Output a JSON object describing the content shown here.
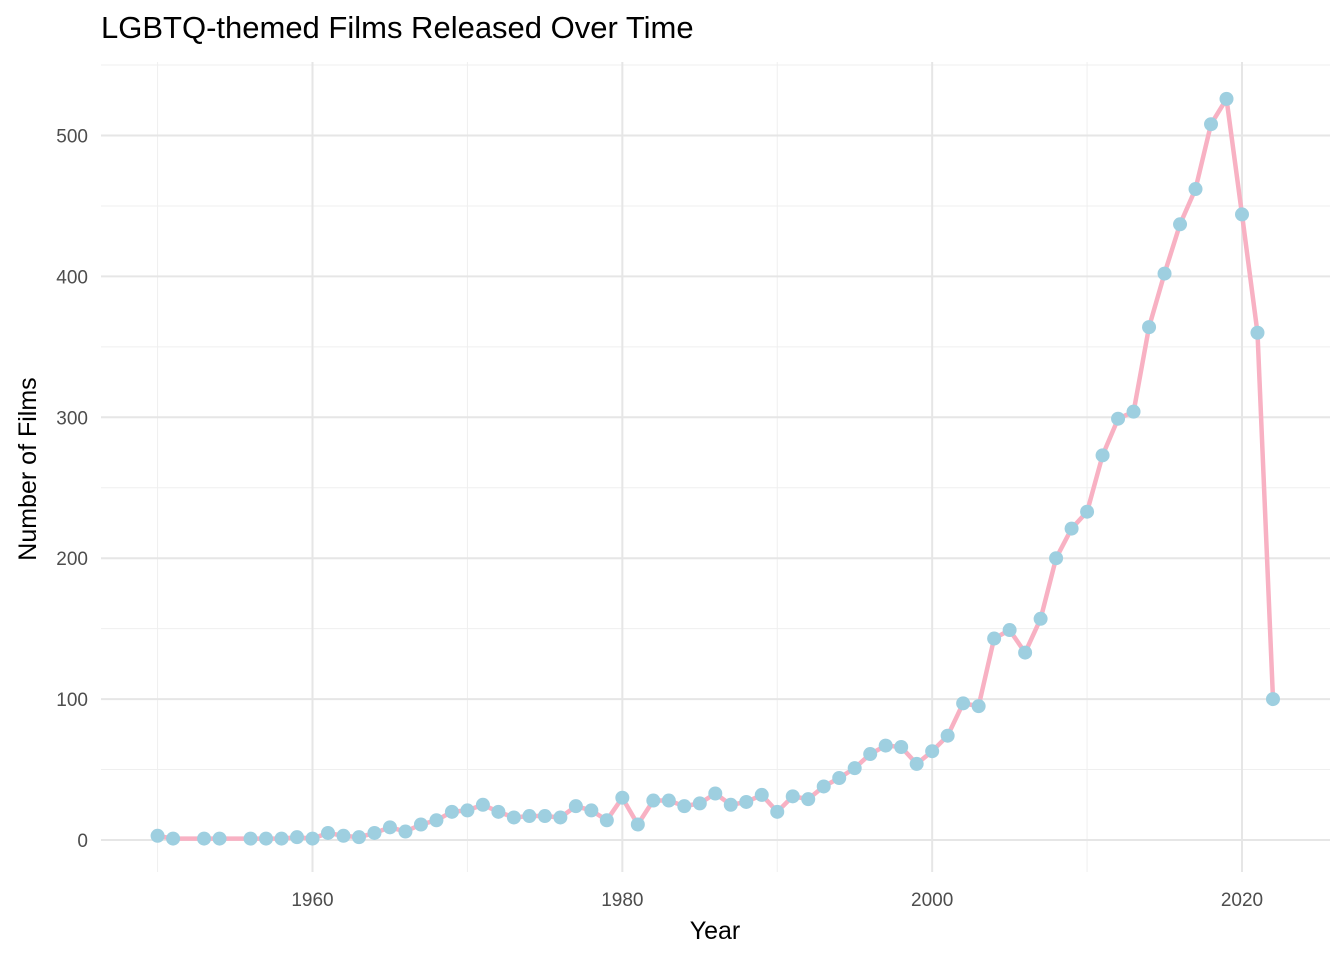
{
  "chart_data": {
    "type": "line",
    "title": "LGBTQ-themed Films Released Over Time",
    "xlabel": "Year",
    "ylabel": "Number of Films",
    "xlim": [
      1946,
      2025
    ],
    "ylim": [
      -20,
      550
    ],
    "x_ticks": [
      1960,
      1980,
      2000,
      2020
    ],
    "x_tick_labels": [
      "1960",
      "1980",
      "2000",
      "2020"
    ],
    "y_ticks": [
      0,
      100,
      200,
      300,
      400,
      500
    ],
    "y_tick_labels": [
      "0",
      "100",
      "200",
      "300",
      "400",
      "500"
    ],
    "grid": true,
    "colors": {
      "line": "#F8B1C3",
      "points": "#9ECFE0",
      "grid": "#E6E6E6"
    },
    "x": [
      1950,
      1951,
      1953,
      1954,
      1956,
      1957,
      1958,
      1959,
      1960,
      1961,
      1962,
      1963,
      1964,
      1965,
      1966,
      1967,
      1968,
      1969,
      1970,
      1971,
      1972,
      1973,
      1974,
      1975,
      1976,
      1977,
      1978,
      1979,
      1980,
      1981,
      1982,
      1983,
      1984,
      1985,
      1986,
      1987,
      1988,
      1989,
      1990,
      1991,
      1992,
      1993,
      1994,
      1995,
      1996,
      1997,
      1998,
      1999,
      2000,
      2001,
      2002,
      2003,
      2004,
      2005,
      2006,
      2007,
      2008,
      2009,
      2010,
      2011,
      2012,
      2013,
      2014,
      2015,
      2016,
      2017,
      2018,
      2019,
      2020,
      2021,
      2022
    ],
    "values": [
      3,
      1,
      1,
      1,
      1,
      1,
      1,
      2,
      1,
      5,
      3,
      2,
      5,
      9,
      6,
      11,
      14,
      20,
      21,
      25,
      20,
      16,
      17,
      17,
      16,
      24,
      21,
      14,
      30,
      11,
      28,
      28,
      24,
      26,
      33,
      25,
      27,
      32,
      20,
      31,
      29,
      38,
      44,
      51,
      61,
      67,
      66,
      54,
      63,
      74,
      97,
      95,
      143,
      149,
      133,
      157,
      200,
      221,
      233,
      273,
      299,
      304,
      364,
      402,
      437,
      462,
      508,
      526,
      444,
      360,
      100
    ]
  }
}
